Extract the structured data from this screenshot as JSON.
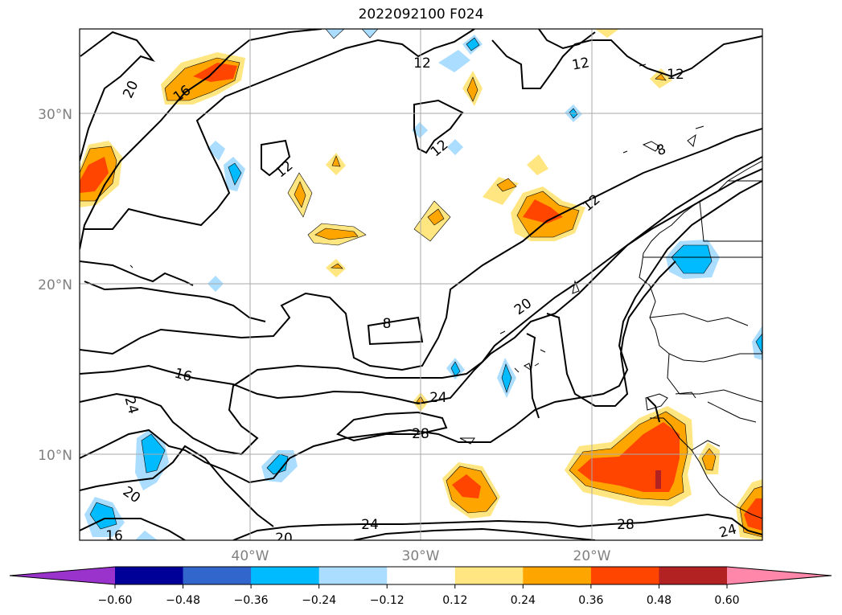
{
  "title": "2022092100 F024",
  "lat_labels": [
    "30°N",
    "20°N",
    "10°N"
  ],
  "lon_labels": [
    "40°W",
    "30°W",
    "20°W"
  ],
  "contour_labels": [
    "20",
    "16",
    "12",
    "12",
    "12",
    "12",
    "8",
    "12",
    "20",
    "8",
    "16",
    "24",
    "24",
    "28",
    "20",
    "16",
    "20",
    "24",
    "28",
    "24"
  ],
  "colorbar": {
    "ticks": [
      "−0.60",
      "−0.48",
      "−0.36",
      "−0.24",
      "−0.12",
      "0.12",
      "0.24",
      "0.36",
      "0.48",
      "0.60"
    ],
    "colors": [
      "#9933cc",
      "#000099",
      "#3366cc",
      "#00bbff",
      "#aaddff",
      "#ffffff",
      "#ffe680",
      "#ffa500",
      "#ff4500",
      "#b22222",
      "#ff88aa"
    ]
  }
}
